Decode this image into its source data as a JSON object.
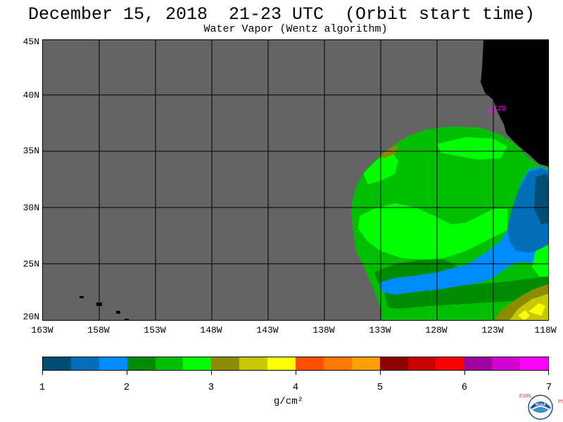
{
  "title": "December 15, 2018  21-23 UTC  (Orbit start time)",
  "subtitle": "Water Vapor (Wentz algorithm)",
  "map": {
    "lat_labels": [
      "45N",
      "40N",
      "35N",
      "30N",
      "25N",
      "20N"
    ],
    "lon_labels": [
      "163W",
      "158W",
      "153W",
      "148W",
      "143W",
      "138W",
      "133W",
      "128W",
      "123W",
      "118W"
    ],
    "station_label": "CZD",
    "ocean_no_data_color": "#646464",
    "land_color": "#000000",
    "station_color": "#ff00ff"
  },
  "colorbar": {
    "tick_labels": [
      "1",
      "2",
      "3",
      "4",
      "5",
      "6",
      "7"
    ],
    "units": "g/cm²",
    "colors": [
      "#004e73",
      "#006eb8",
      "#008cff",
      "#008c00",
      "#00bf00",
      "#00ff00",
      "#8c8c00",
      "#c8c800",
      "#ffff00",
      "#ff5000",
      "#ff7800",
      "#ffa000",
      "#8c0000",
      "#c80000",
      "#ff0000",
      "#a000a0",
      "#d200d2",
      "#ff00ff"
    ]
  },
  "logo": {
    "left_text": "ESRL",
    "right_text": "PSD",
    "center_text": "NOAA"
  }
}
